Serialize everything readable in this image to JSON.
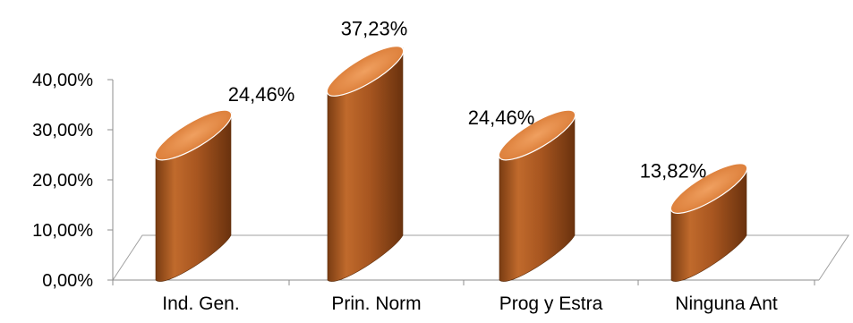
{
  "chart_data": {
    "type": "bar",
    "bar_shape": "cylinder",
    "categories": [
      "Ind. Gen.",
      "Prin. Norm",
      "Prog y Estra",
      "Ninguna Ant"
    ],
    "values": [
      24.46,
      37.23,
      24.46,
      13.82
    ],
    "data_labels": [
      "24,46%",
      "37,23%",
      "24,46%",
      "13,82%"
    ],
    "ylim": [
      0,
      40
    ],
    "yticks": [
      0,
      10,
      20,
      30,
      40
    ],
    "ytick_labels": [
      "0,00%",
      "10,00%",
      "20,00%",
      "30,00%",
      "40,00%"
    ],
    "title": "",
    "xlabel": "",
    "ylabel": "",
    "grid": false,
    "legend": "none",
    "colors": {
      "bar_side": "#b8652a",
      "bar_side_dark": "#6e3510",
      "bar_side_light": "#d98a4c",
      "bar_top": "#e8914e",
      "bar_top_edge": "#ffffff",
      "floor_line": "#a0a0a0",
      "axis_line": "#8c8c8c"
    }
  }
}
